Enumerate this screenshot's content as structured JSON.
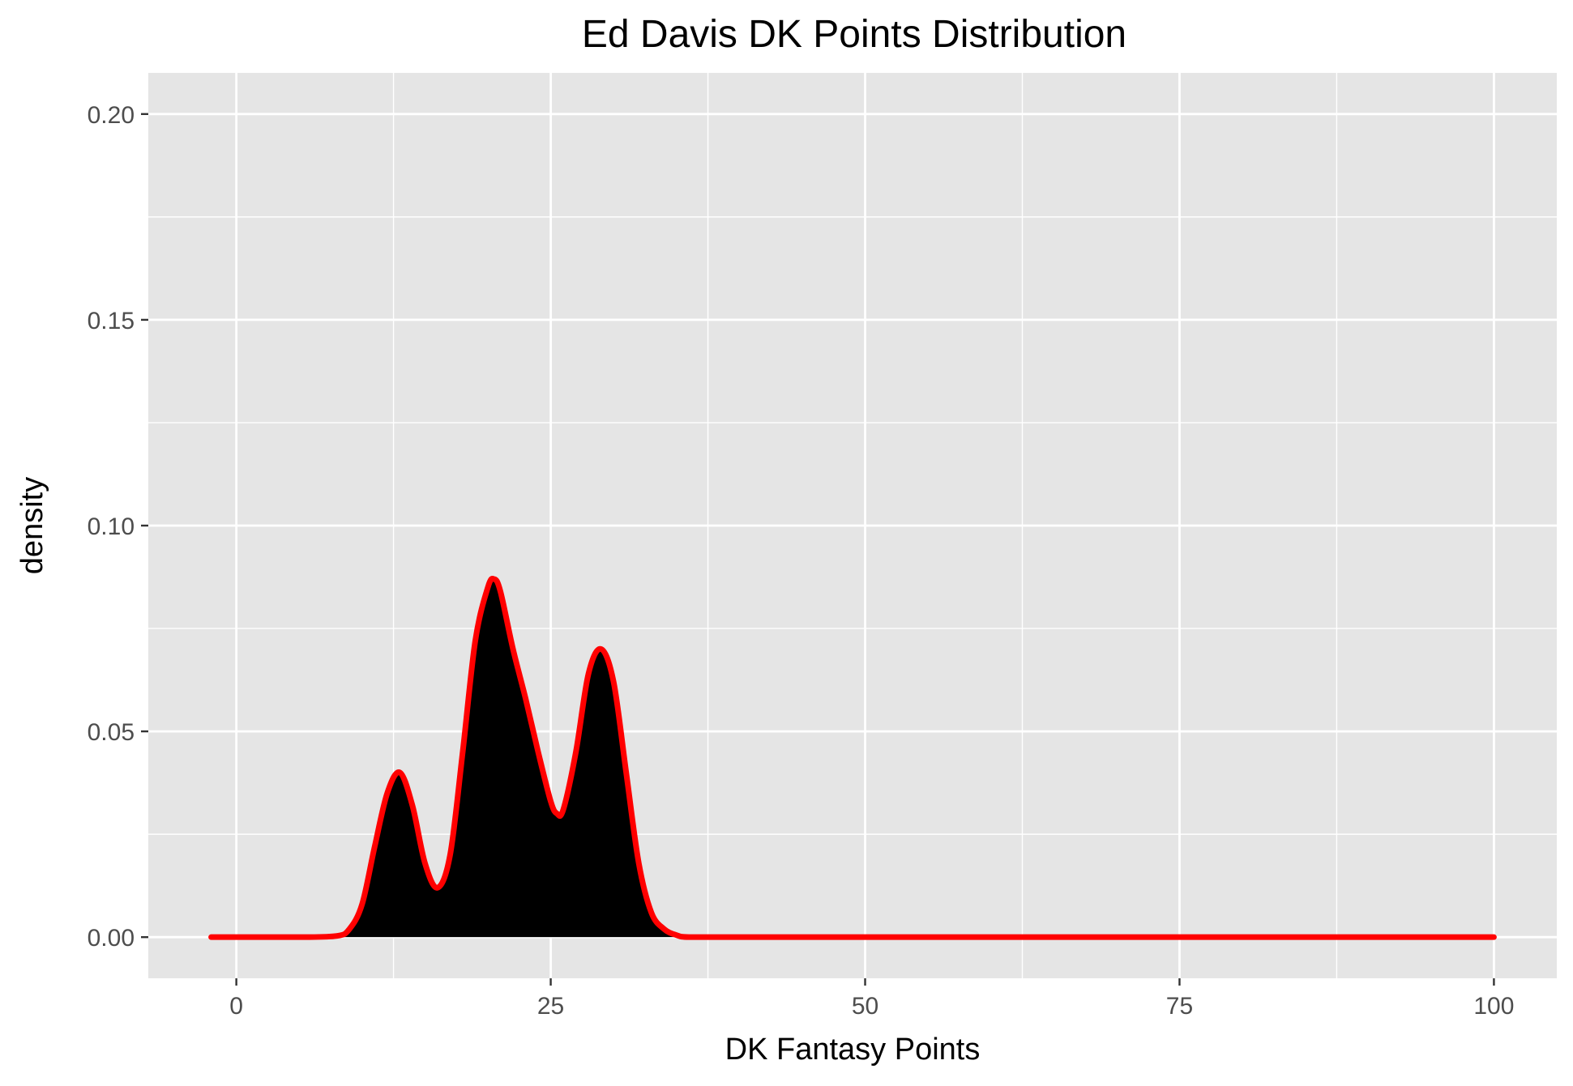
{
  "chart_data": {
    "type": "area",
    "title": "Ed Davis DK Points Distribution",
    "xlabel": "DK Fantasy Points",
    "ylabel": "density",
    "xlim": [
      -7,
      105
    ],
    "ylim": [
      -0.01,
      0.21
    ],
    "x_ticks": [
      0,
      25,
      50,
      75,
      100
    ],
    "x_tick_labels": [
      "0",
      "25",
      "50",
      "75",
      "100"
    ],
    "y_ticks": [
      0,
      0.05,
      0.1,
      0.15,
      0.2
    ],
    "y_tick_labels": [
      "0.00",
      "0.05",
      "0.10",
      "0.15",
      "0.20"
    ],
    "grid": true,
    "fill_color": "#000000",
    "line_color": "#ff0000",
    "panel_color": "#e5e5e5",
    "grid_color": "#ffffff",
    "x": [
      -2,
      5,
      8,
      9,
      10,
      11,
      12,
      13,
      14,
      15,
      16,
      17,
      18,
      19,
      20,
      20.5,
      21,
      22,
      23,
      24,
      25,
      25.5,
      26,
      27,
      28,
      29,
      30,
      31,
      32,
      33,
      34,
      35,
      36,
      40,
      60,
      80,
      100
    ],
    "y": [
      0,
      0,
      0.0003,
      0.002,
      0.008,
      0.022,
      0.035,
      0.04,
      0.032,
      0.018,
      0.012,
      0.02,
      0.045,
      0.072,
      0.085,
      0.087,
      0.084,
      0.07,
      0.058,
      0.045,
      0.033,
      0.03,
      0.031,
      0.045,
      0.064,
      0.07,
      0.062,
      0.04,
      0.018,
      0.006,
      0.002,
      0.0005,
      0,
      0,
      0,
      0,
      0
    ]
  }
}
